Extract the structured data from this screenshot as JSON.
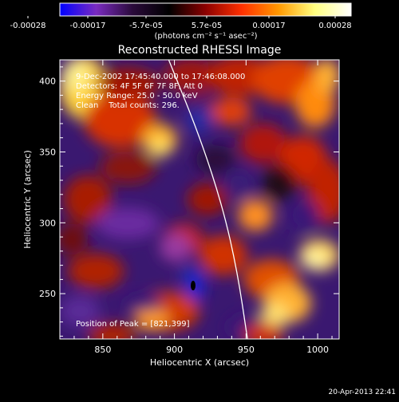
{
  "chart_data": {
    "type": "heatmap",
    "title": "Reconstructed RHESSI Image",
    "xlabel": "Heliocentric X (arcsec)",
    "ylabel": "Heliocentric Y (arcsec)",
    "xlim": [
      820,
      1015
    ],
    "ylim": [
      218,
      415
    ],
    "xticks": [
      850,
      900,
      950,
      1000
    ],
    "yticks": [
      250,
      300,
      350,
      400
    ],
    "colorbar": {
      "ticks": [
        "-0.00028",
        "-0.00017",
        "-5.7e-05",
        "5.7e-05",
        "0.00017",
        "0.00028"
      ],
      "unit": "(photons cm⁻² s⁻¹ asec⁻²)",
      "range": [
        -0.00028,
        0.00028
      ],
      "colors": [
        "#0000ff",
        "#7a2bc0",
        "#2a0a3a",
        "#000000",
        "#8b0000",
        "#ff3000",
        "#ff9800",
        "#ffff80",
        "#ffffff"
      ]
    },
    "annotation_lines": [
      "9-Dec-2002 17:45:40.000 to 17:46:08.000",
      "Detectors: 4F 5F 6F 7F 8F, Att 0",
      "Energy Range: 25.0 - 50.0 keV",
      "Clean    Total counts: 296."
    ],
    "peak_text": "Position of Peak = [821,399]",
    "peak": [
      821,
      399
    ],
    "limb_arc": [
      [
        896,
        415
      ],
      [
        918,
        360
      ],
      [
        934,
        310
      ],
      [
        944,
        265
      ],
      [
        951,
        218
      ]
    ]
  },
  "timestamp": "20-Apr-2013 22:41"
}
